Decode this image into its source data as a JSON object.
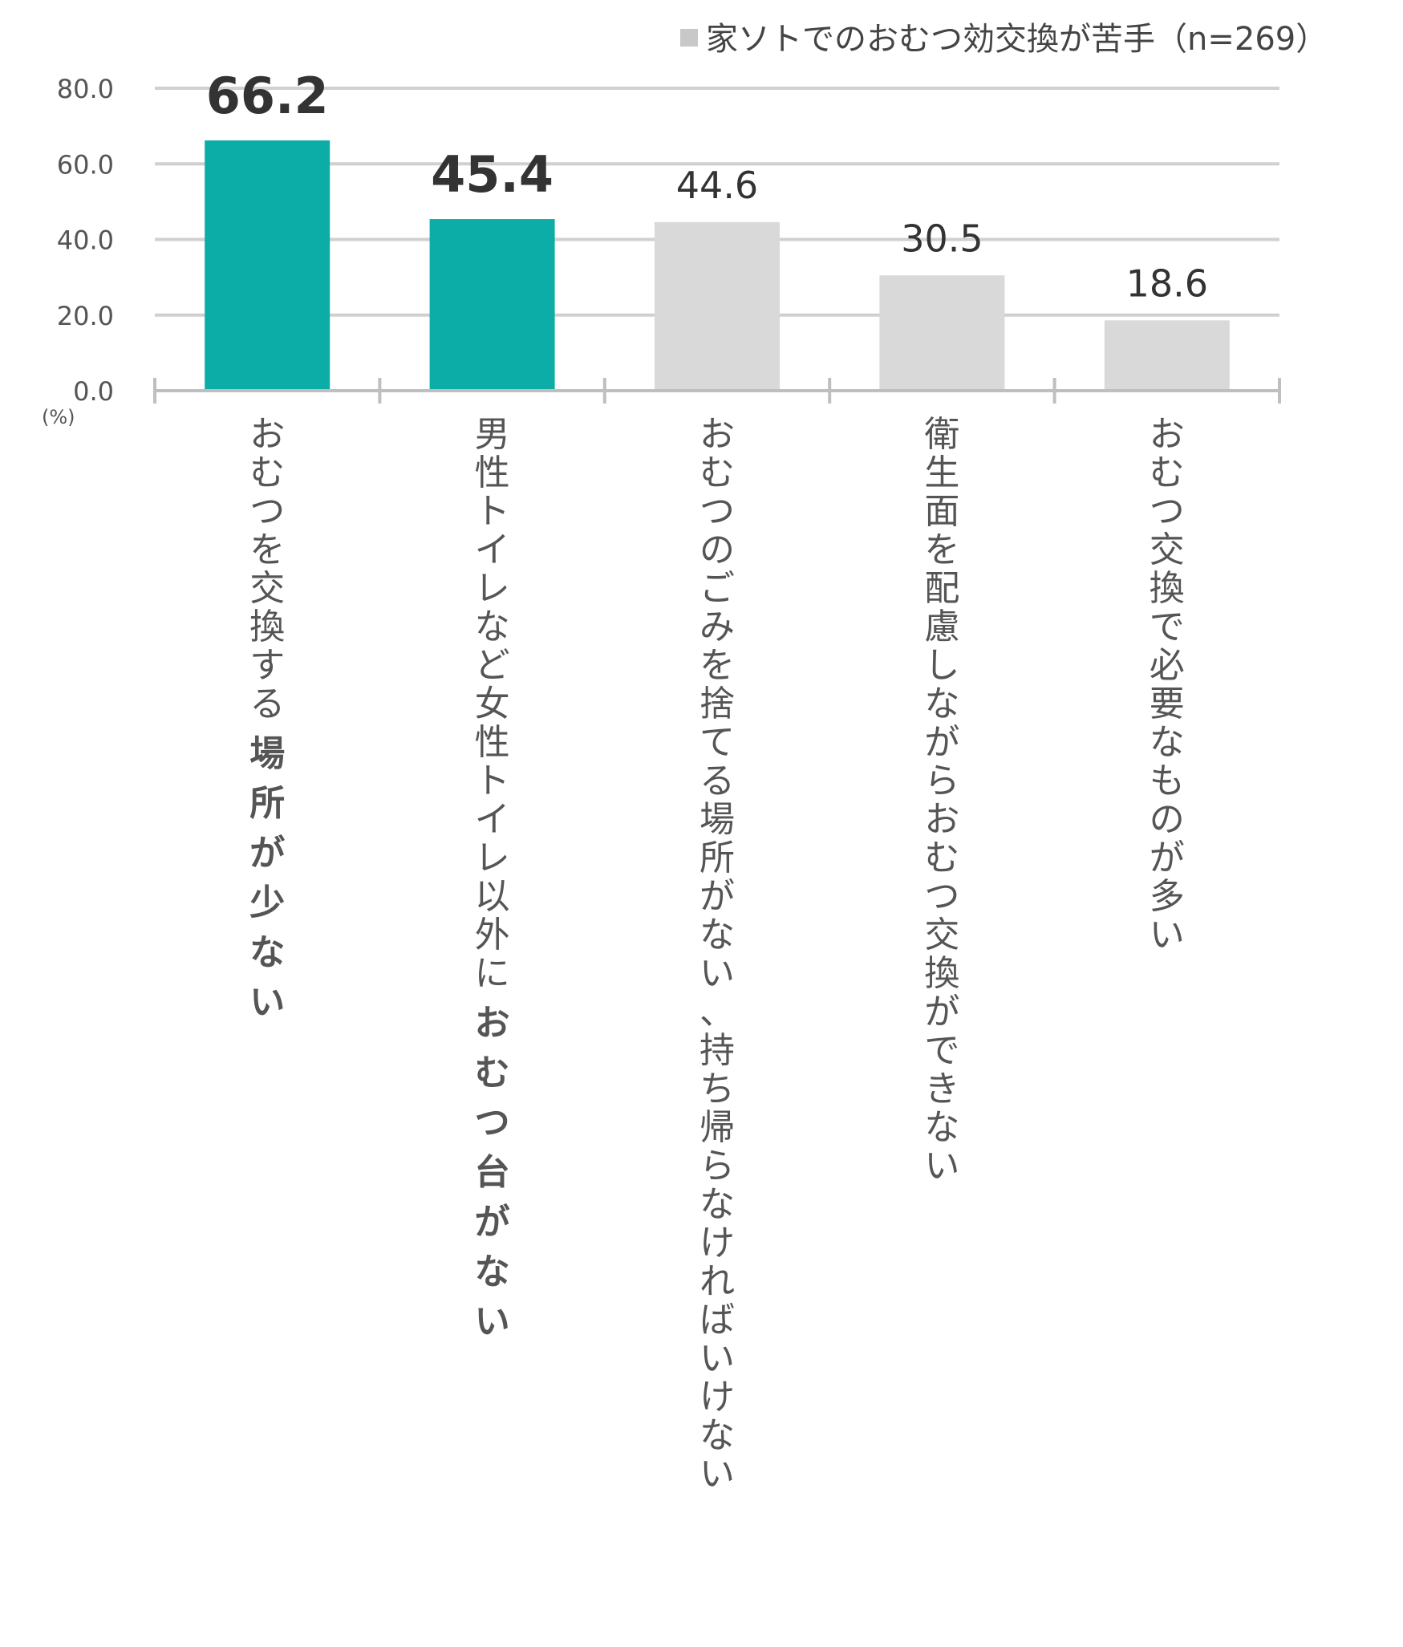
{
  "chart_data": {
    "type": "bar",
    "legend": "家ソトでのおむつ効交換が苦手（n=269）",
    "unit": "(%)",
    "ylim": [
      0,
      80
    ],
    "yticks": [
      "0.0",
      "20.0",
      "40.0",
      "60.0",
      "80.0"
    ],
    "categories": [
      {
        "plain": "おむつを交換する",
        "strong": "場所が少ない"
      },
      {
        "plain": "男性トイレなど女性トイレ以外に",
        "strong": "おむつ台がない"
      },
      {
        "plain": "おむつのごみを捨てる場所がない、持ち帰らなければいけない",
        "strong": ""
      },
      {
        "plain": "衛生面を配慮しながらおむつ交換ができない",
        "strong": ""
      },
      {
        "plain": "おむつ交換で必要なものが多い",
        "strong": ""
      }
    ],
    "values": [
      66.2,
      45.4,
      44.6,
      30.5,
      18.6
    ],
    "value_labels": [
      "66.2",
      "45.4",
      "44.6",
      "30.5",
      "18.6"
    ],
    "highlighted": [
      true,
      true,
      false,
      false,
      false
    ],
    "colors": {
      "highlight": "#0dada7",
      "normal": "#d9d9d9",
      "legend": "#c8c8c8",
      "grid": "#d0d0d0",
      "axis": "#bfbfbf"
    },
    "grid": true,
    "legend_position": "top-right"
  }
}
